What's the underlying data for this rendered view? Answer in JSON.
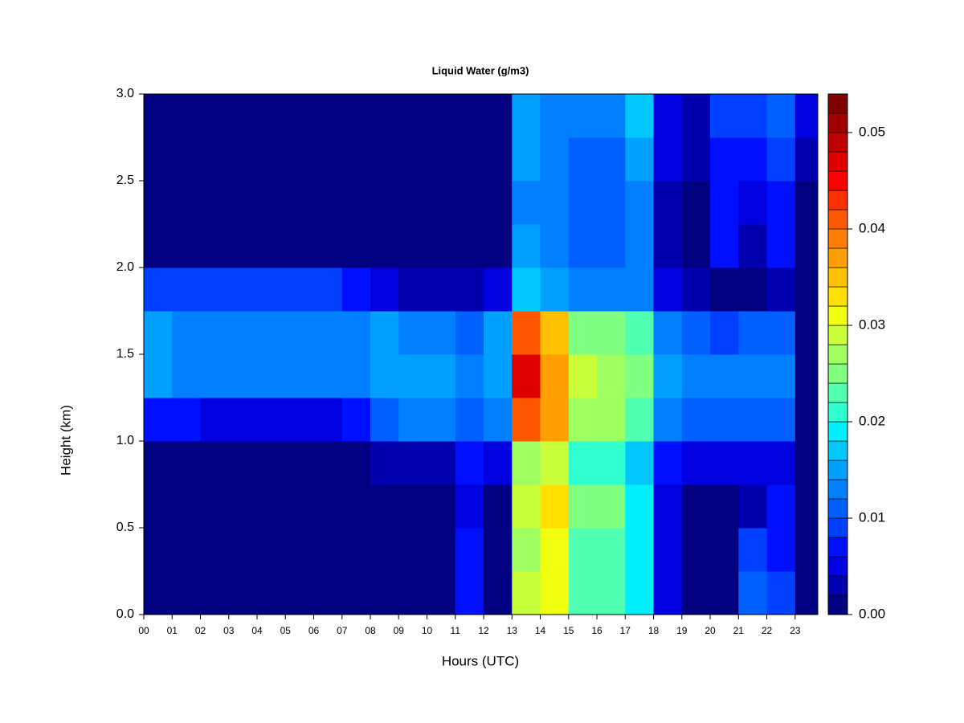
{
  "chart_data": {
    "type": "heatmap",
    "title": "Liquid Water (g/m3)",
    "xlabel": "Hours (UTC)",
    "ylabel": "Height (km)",
    "xlim": [
      0,
      23.8
    ],
    "ylim": [
      0,
      3.0
    ],
    "xticks": [
      {
        "value": 0,
        "label": "00"
      },
      {
        "value": 1,
        "label": "01"
      },
      {
        "value": 2,
        "label": "02"
      },
      {
        "value": 3,
        "label": "03"
      },
      {
        "value": 4,
        "label": "04"
      },
      {
        "value": 5,
        "label": "05"
      },
      {
        "value": 6,
        "label": "06"
      },
      {
        "value": 7,
        "label": "07"
      },
      {
        "value": 8,
        "label": "08"
      },
      {
        "value": 9,
        "label": "09"
      },
      10,
      11,
      12,
      13,
      14,
      15,
      16,
      17,
      18,
      19,
      20,
      21,
      22,
      23
    ],
    "yticks": [
      {
        "value": 0,
        "label": "0.0"
      },
      0.5,
      {
        "value": 1,
        "label": "1.0"
      },
      1.5,
      {
        "value": 2,
        "label": "2.0"
      },
      2.5,
      {
        "value": 3,
        "label": "3.0"
      }
    ],
    "x_bins": [
      0,
      1,
      2,
      3,
      4,
      5,
      6,
      7,
      8,
      9,
      10,
      11,
      12,
      13,
      14,
      15,
      16,
      17,
      18,
      19,
      20,
      21,
      22,
      23,
      23.8
    ],
    "y_bins": [
      0,
      0.25,
      0.5,
      0.75,
      1.0,
      1.25,
      1.5,
      1.75,
      2.0,
      2.25,
      2.5,
      2.75,
      3.0
    ],
    "z": [
      [
        0,
        0,
        0,
        0,
        0,
        0,
        0,
        0,
        0,
        0,
        0,
        0.006,
        0,
        0.028,
        0.03,
        0.022,
        0.022,
        0.018,
        0.004,
        0,
        0,
        0.01,
        0.008,
        0
      ],
      [
        0,
        0,
        0,
        0,
        0,
        0,
        0,
        0,
        0,
        0,
        0,
        0.006,
        0,
        0.027,
        0.03,
        0.022,
        0.022,
        0.018,
        0.004,
        0,
        0,
        0.008,
        0.007,
        0
      ],
      [
        0,
        0,
        0,
        0,
        0,
        0,
        0,
        0,
        0,
        0,
        0,
        0.005,
        0,
        0.028,
        0.032,
        0.024,
        0.024,
        0.018,
        0.004,
        0,
        0,
        0.003,
        0.006,
        0
      ],
      [
        0,
        0,
        0,
        0,
        0,
        0,
        0,
        0,
        0.003,
        0.003,
        0.003,
        0.006,
        0.004,
        0.026,
        0.028,
        0.02,
        0.02,
        0.016,
        0.006,
        0.004,
        0.004,
        0.004,
        0.005,
        0
      ],
      [
        0.006,
        0.006,
        0.005,
        0.004,
        0.004,
        0.004,
        0.004,
        0.006,
        0.01,
        0.012,
        0.012,
        0.01,
        0.012,
        0.04,
        0.036,
        0.026,
        0.026,
        0.022,
        0.012,
        0.01,
        0.01,
        0.01,
        0.01,
        0
      ],
      [
        0.014,
        0.013,
        0.013,
        0.012,
        0.012,
        0.012,
        0.012,
        0.012,
        0.014,
        0.014,
        0.014,
        0.012,
        0.014,
        0.046,
        0.036,
        0.028,
        0.026,
        0.024,
        0.014,
        0.012,
        0.012,
        0.012,
        0.012,
        0
      ],
      [
        0.014,
        0.013,
        0.013,
        0.013,
        0.013,
        0.013,
        0.013,
        0.012,
        0.014,
        0.013,
        0.012,
        0.01,
        0.014,
        0.04,
        0.034,
        0.024,
        0.024,
        0.022,
        0.012,
        0.01,
        0.008,
        0.01,
        0.01,
        0
      ],
      [
        0.008,
        0.008,
        0.008,
        0.008,
        0.008,
        0.008,
        0.008,
        0.007,
        0.004,
        0.003,
        0.003,
        0.003,
        0.004,
        0.016,
        0.014,
        0.012,
        0.012,
        0.012,
        0.004,
        0.002,
        0,
        0,
        0.003,
        0
      ],
      [
        0,
        0,
        0,
        0,
        0,
        0,
        0,
        0,
        0,
        0,
        0,
        0,
        0,
        0.014,
        0.013,
        0.01,
        0.01,
        0.012,
        0.002,
        0,
        0.006,
        0.002,
        0.006,
        0
      ],
      [
        0,
        0,
        0,
        0,
        0,
        0,
        0,
        0,
        0,
        0,
        0,
        0,
        0,
        0.013,
        0.012,
        0.01,
        0.01,
        0.013,
        0.003,
        0,
        0.006,
        0.004,
        0.006,
        0
      ],
      [
        0,
        0,
        0,
        0,
        0,
        0,
        0,
        0,
        0,
        0,
        0,
        0,
        0,
        0.014,
        0.012,
        0.01,
        0.01,
        0.014,
        0.004,
        0.002,
        0.007,
        0.006,
        0.008,
        0.002
      ],
      [
        0,
        0,
        0,
        0,
        0,
        0,
        0,
        0,
        0,
        0,
        0,
        0,
        0,
        0.014,
        0.012,
        0.012,
        0.012,
        0.016,
        0.005,
        0.003,
        0.008,
        0.008,
        0.01,
        0.004
      ]
    ],
    "zlim": [
      0,
      0.054
    ],
    "zticks": [
      {
        "value": 0,
        "label": "0.00"
      },
      0.01,
      0.02,
      0.03,
      0.04,
      0.05
    ],
    "colors": [
      "#000080",
      "#0000b0",
      "#0000e0",
      "#0010ff",
      "#0040ff",
      "#0060ff",
      "#0080ff",
      "#00a0ff",
      "#00c8ff",
      "#00f0ff",
      "#30ffd0",
      "#50ffb0",
      "#80ff80",
      "#a0ff60",
      "#c8ff38",
      "#f0ff10",
      "#ffe000",
      "#ffc000",
      "#ffa000",
      "#ff8000",
      "#ff5800",
      "#ff3000",
      "#ff0000",
      "#e00000",
      "#c00000",
      "#a00000",
      "#800000"
    ]
  }
}
